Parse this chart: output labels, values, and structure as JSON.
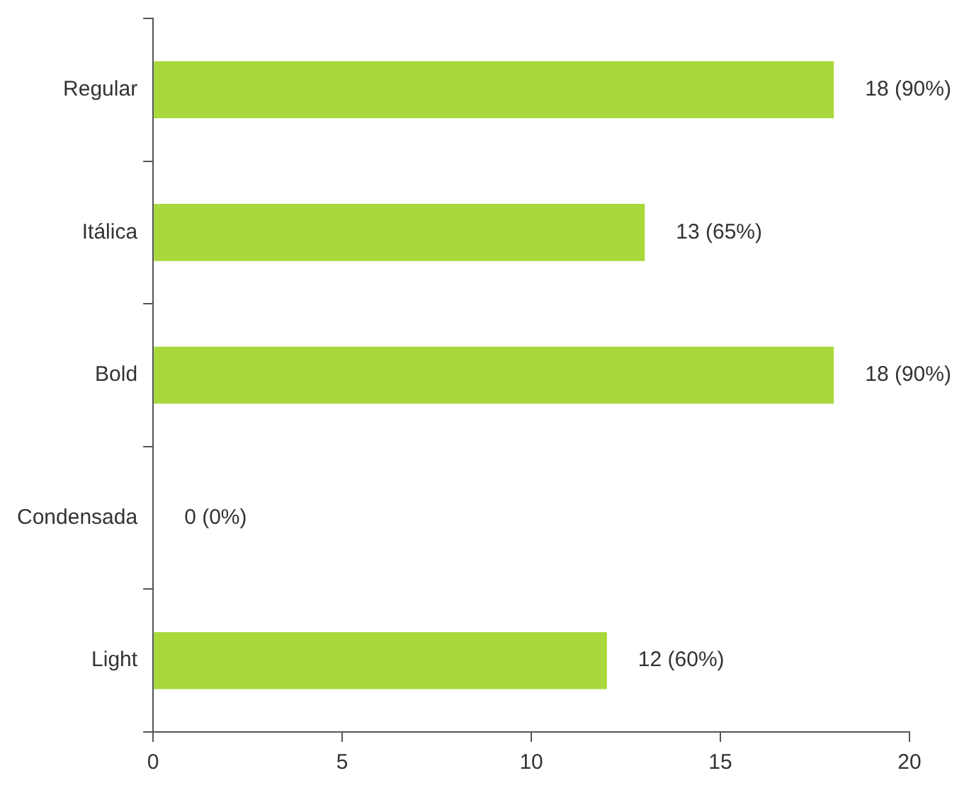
{
  "chart_data": {
    "type": "bar",
    "orientation": "horizontal",
    "categories": [
      "Regular",
      "Itálica",
      "Bold",
      "Condensada",
      "Light"
    ],
    "values": [
      18,
      13,
      18,
      0,
      12
    ],
    "value_labels": [
      "18 (90%)",
      "13 (65%)",
      "18 (90%)",
      "0 (0%)",
      "12 (60%)"
    ],
    "color": "#a8d83c",
    "xlim": [
      0,
      20
    ],
    "xticks": [
      0,
      5,
      10,
      15,
      20
    ],
    "grid": false,
    "legend": false
  }
}
